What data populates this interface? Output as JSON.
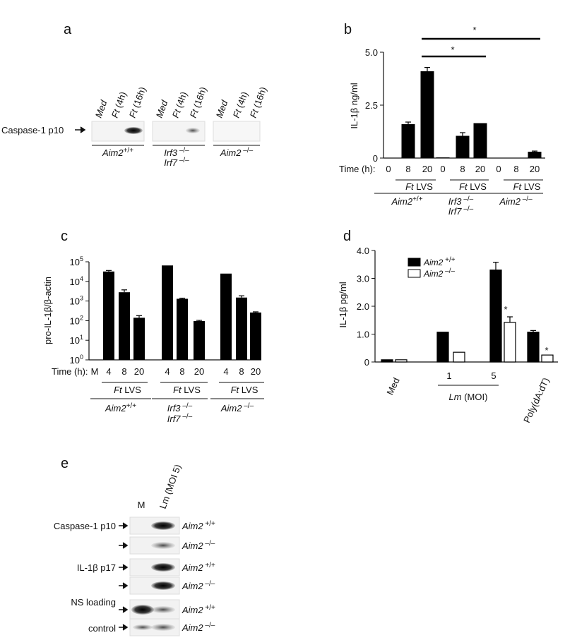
{
  "panels": {
    "a": {
      "label": "a",
      "lane_labels": [
        "Med",
        "Ft (4h)",
        "Ft (16h)"
      ],
      "lane_labels_prefixed": [
        [
          "",
          "Med"
        ],
        [
          "Ft",
          " (4h)"
        ],
        [
          "Ft",
          " (16h)"
        ]
      ],
      "row_label": "Caspase-1 p10",
      "genotypes": [
        {
          "name": "Aim2",
          "sup": "+/+"
        },
        {
          "name": "Irf3",
          "sup": " –/–",
          "name2": "Irf7",
          "sup2": " –/–"
        },
        {
          "name": "Aim2",
          "sup": " –/–"
        }
      ]
    },
    "b": {
      "label": "b"
    },
    "c": {
      "label": "c"
    },
    "d": {
      "label": "d"
    },
    "e": {
      "label": "e",
      "lanes": [
        "M",
        "Lm (MOI 5)"
      ],
      "rows": [
        {
          "label": "Caspase-1 p10",
          "genotype": "Aim2",
          "sup": " +/+"
        },
        {
          "label": "",
          "genotype": "Aim2",
          "sup": " –/–"
        },
        {
          "label": "IL-1β p17",
          "genotype": "Aim2",
          "sup": " +/+"
        },
        {
          "label": "",
          "genotype": "Aim2",
          "sup": " –/–"
        },
        {
          "label": "NS loading",
          "genotype": "Aim2",
          "sup": " +/+"
        },
        {
          "label": "control",
          "genotype": "Aim2",
          "sup": " –/–"
        }
      ]
    }
  },
  "chart_data": [
    {
      "panel": "b",
      "type": "bar",
      "ylabel": "IL-1β ng/ml",
      "ylim": [
        0,
        5.0
      ],
      "yticks": [
        "0",
        "2.5",
        "5.0"
      ],
      "ytick_values": [
        0,
        2.5,
        5.0
      ],
      "xlabel": "Time (h):",
      "groups": [
        {
          "treatment": "Ft LVS",
          "genotype": "Aim2",
          "sup": "+/+",
          "times": [
            "0",
            "8",
            "20"
          ],
          "values": [
            0.0,
            1.6,
            4.1
          ],
          "errors": [
            0,
            0.1,
            0.18
          ]
        },
        {
          "treatment": "Ft LVS",
          "genotype": "Irf3",
          "sup": " –/–",
          "genotype2": "Irf7",
          "sup2": " –/–",
          "times": [
            "0",
            "8",
            "20"
          ],
          "values": [
            0.03,
            1.05,
            1.65
          ],
          "errors": [
            0,
            0.15,
            0
          ]
        },
        {
          "treatment": "Ft LVS",
          "genotype": "Aim2",
          "sup": " –/–",
          "times": [
            "0",
            "8",
            "20"
          ],
          "values": [
            0.0,
            0.0,
            0.3
          ],
          "errors": [
            0,
            0,
            0.03
          ]
        }
      ],
      "significance": [
        "*",
        "*"
      ]
    },
    {
      "panel": "c",
      "type": "bar",
      "yscale": "log",
      "ylabel": "pro-IL-1β/β-actin",
      "ylim": [
        1,
        100000
      ],
      "yticks": [
        {
          "base": "10",
          "exp": "0"
        },
        {
          "base": "10",
          "exp": "1"
        },
        {
          "base": "10",
          "exp": "2"
        },
        {
          "base": "10",
          "exp": "3"
        },
        {
          "base": "10",
          "exp": "4"
        },
        {
          "base": "10",
          "exp": "5"
        }
      ],
      "ytick_values": [
        1,
        10,
        100,
        1000,
        10000,
        100000
      ],
      "xlabel": "Time (h):",
      "groups": [
        {
          "treatment": "Ft LVS",
          "genotype": "Aim2",
          "sup": "+/+",
          "times": [
            "M",
            "4",
            "8",
            "20"
          ],
          "values": [
            1,
            32000,
            2800,
            140
          ],
          "errors": [
            0,
            4000,
            900,
            40
          ]
        },
        {
          "treatment": "Ft LVS",
          "genotype": "Irf3",
          "sup": " –/–",
          "genotype2": "Irf7",
          "sup2": " –/–",
          "times": [
            "4",
            "8",
            "20"
          ],
          "values": [
            65000,
            1300,
            95
          ],
          "errors": [
            0,
            100,
            8
          ]
        },
        {
          "treatment": "Ft LVS",
          "genotype": "Aim2",
          "sup": " –/–",
          "times": [
            "4",
            "8",
            "20"
          ],
          "values": [
            25000,
            1500,
            260
          ],
          "errors": [
            0,
            350,
            20
          ]
        }
      ]
    },
    {
      "panel": "d",
      "type": "bar",
      "ylabel": "IL-1β pg/ml",
      "ylim": [
        0,
        4.0
      ],
      "yticks": [
        "0",
        "1.0",
        "2.0",
        "3.0",
        "4.0"
      ],
      "ytick_values": [
        0,
        1.0,
        2.0,
        3.0,
        4.0
      ],
      "categories": [
        "Med",
        "1",
        "5",
        "Poly(dA:dT)"
      ],
      "group_label": {
        "prefix": "Lm",
        "suffix": " (MOI)"
      },
      "legend": [
        {
          "name": "Aim2",
          "sup": " +/+",
          "color": "#000000"
        },
        {
          "name": "Aim2",
          "sup": " –/–",
          "color": "#ffffff"
        }
      ],
      "series": [
        {
          "name": "Aim2 +/+",
          "values": [
            0.08,
            1.07,
            3.3,
            1.07
          ],
          "errors": [
            0,
            0,
            0.28,
            0.06
          ]
        },
        {
          "name": "Aim2 –/–",
          "values": [
            0.08,
            0.35,
            1.42,
            0.25
          ],
          "errors": [
            0,
            0,
            0.2,
            0
          ]
        }
      ],
      "significance": [
        "*",
        "*"
      ]
    }
  ]
}
